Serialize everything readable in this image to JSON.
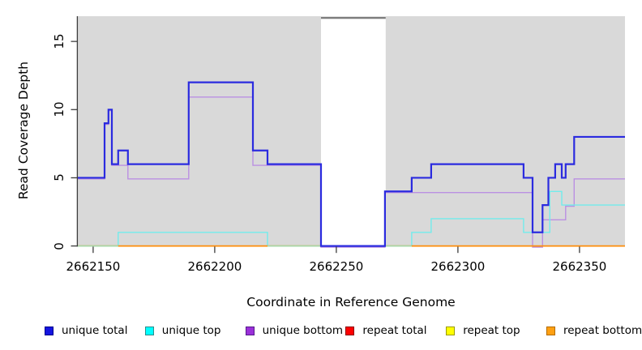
{
  "chart_data": {
    "type": "line",
    "subtype": "step-coverage",
    "title": "",
    "xlabel": "Coordinate in Reference Genome",
    "ylabel": "Read Coverage Depth",
    "x_ticks": [
      "2662150",
      "2662200",
      "2662250",
      "2662300",
      "2662350"
    ],
    "x_tick_values": [
      2662150,
      2662200,
      2662250,
      2662300,
      2662350
    ],
    "y_ticks": [
      "0",
      "5",
      "10",
      "15"
    ],
    "y_tick_values": [
      0,
      5,
      10,
      15
    ],
    "x_range": [
      2662143.7,
      2662368.7
    ],
    "y_range": [
      0,
      16.85
    ],
    "grid": false,
    "plot_background": "#d9d9d9",
    "axis_color": "#3c3c3c",
    "mask_region": {
      "start": 2662243.7,
      "end": 2662270.3,
      "fill": "#ffffff",
      "cap_color": "#7d7d7d"
    },
    "series": [
      {
        "name": "unique total",
        "color": "#2b2bdf",
        "line_width": 2.2,
        "points": [
          [
            2662143.7,
            5
          ],
          [
            2662154.7,
            9
          ],
          [
            2662156.3,
            10
          ],
          [
            2662157.7,
            6
          ],
          [
            2662160.3,
            7
          ],
          [
            2662164.3,
            6
          ],
          [
            2662189.3,
            12
          ],
          [
            2662215.7,
            7
          ],
          [
            2662221.7,
            6
          ],
          [
            2662243.7,
            0
          ],
          [
            2662270.0,
            4
          ],
          [
            2662281.0,
            5
          ],
          [
            2662289.0,
            6
          ],
          [
            2662327.0,
            5
          ],
          [
            2662330.7,
            1
          ],
          [
            2662334.8,
            3
          ],
          [
            2662337.2,
            5
          ],
          [
            2662340.0,
            6
          ],
          [
            2662342.7,
            5
          ],
          [
            2662344.3,
            6
          ],
          [
            2662347.8,
            8
          ],
          [
            2662368.7,
            8
          ]
        ]
      },
      {
        "name": "unique top",
        "color": "#72ecec",
        "line_width": 1.4,
        "points": [
          [
            2662143.7,
            0
          ],
          [
            2662160.3,
            1
          ],
          [
            2662221.7,
            0
          ],
          [
            2662281.0,
            1
          ],
          [
            2662289.0,
            2
          ],
          [
            2662327.0,
            1
          ],
          [
            2662337.8,
            4
          ],
          [
            2662342.7,
            3
          ],
          [
            2662368.7,
            3
          ]
        ]
      },
      {
        "name": "unique bottom",
        "color": "#ba90e2",
        "line_width": 1.4,
        "points": [
          [
            2662143.7,
            5
          ],
          [
            2662154.7,
            9
          ],
          [
            2662156.3,
            10
          ],
          [
            2662157.7,
            6
          ],
          [
            2662164.3,
            5
          ],
          [
            2662189.3,
            11
          ],
          [
            2662215.7,
            6
          ],
          [
            2662243.7,
            0
          ],
          [
            2662270.0,
            4
          ],
          [
            2662330.7,
            0
          ],
          [
            2662334.8,
            2
          ],
          [
            2662344.3,
            3
          ],
          [
            2662347.8,
            5
          ],
          [
            2662368.7,
            5
          ]
        ]
      },
      {
        "name": "repeat total",
        "color": "#ff0000",
        "line_width": 1.2,
        "points": [
          [
            2662143.7,
            0
          ],
          [
            2662368.7,
            0
          ]
        ]
      },
      {
        "name": "repeat top",
        "color": "#ffff00",
        "line_width": 1.2,
        "points": [
          [
            2662143.7,
            0
          ],
          [
            2662368.7,
            0
          ]
        ]
      },
      {
        "name": "repeat bottom",
        "color": "#ff8c0a",
        "line_width": 1.8,
        "points": [
          [
            2662143.7,
            0
          ],
          [
            2662368.7,
            0
          ]
        ]
      }
    ],
    "zero_overlap_green": {
      "color": "#a9d7a9",
      "line_width": 1.8,
      "segments": [
        [
          2662143.7,
          2662160.3
        ],
        [
          2662221.7,
          2662243.7
        ],
        [
          2662270.3,
          2662281.0
        ]
      ]
    }
  },
  "legend": {
    "items": [
      {
        "label": "unique total",
        "fill": "#1414e0",
        "border": "#00008b"
      },
      {
        "label": "unique top",
        "fill": "#00ffff",
        "border": "#2e8b8b"
      },
      {
        "label": "unique bottom",
        "fill": "#9b30d9",
        "border": "#551a8b"
      },
      {
        "label": "repeat total",
        "fill": "#ff0000",
        "border": "#8b0000"
      },
      {
        "label": "repeat top",
        "fill": "#ffff00",
        "border": "#9a9a00"
      },
      {
        "label": "repeat bottom",
        "fill": "#ffa012",
        "border": "#b36b00"
      }
    ]
  }
}
